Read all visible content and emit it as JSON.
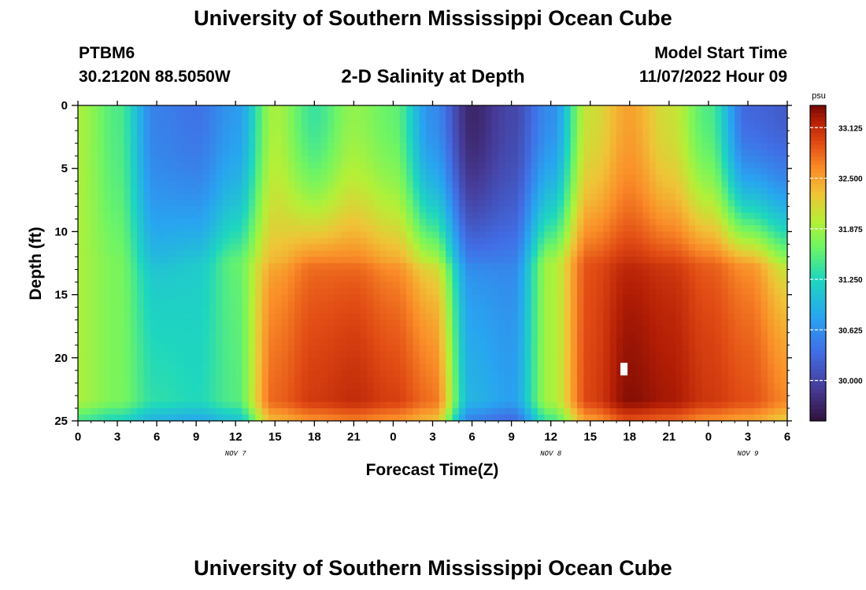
{
  "title": "University of Southern Mississippi Ocean Cube",
  "bottom_title": "University of Southern Mississippi Ocean Cube",
  "station": {
    "id": "PTBM6",
    "coords": "30.2120N  88.5050W"
  },
  "subtitle": "2-D Salinity at Depth",
  "model_start": {
    "label": "Model Start Time",
    "value": "11/07/2022 Hour 09"
  },
  "chart_data": {
    "type": "heatmap",
    "title": "2-D Salinity at Depth",
    "xlabel": "Forecast Time(Z)",
    "ylabel": "Depth (ft)",
    "x_range_hours": [
      0,
      54
    ],
    "y_range_ft": [
      0,
      25
    ],
    "x_ticks": [
      "0",
      "3",
      "6",
      "9",
      "12",
      "15",
      "18",
      "21",
      "0",
      "3",
      "6",
      "9",
      "12",
      "15",
      "18",
      "21",
      "0",
      "3",
      "6"
    ],
    "y_ticks": [
      "0",
      "5",
      "10",
      "15",
      "20",
      "25"
    ],
    "date_labels": [
      {
        "text": "NOV 7",
        "hour": 12
      },
      {
        "text": "NOV 8",
        "hour": 36
      },
      {
        "text": "NOV 9",
        "hour": 51
      }
    ],
    "colorbar": {
      "unit": "psu",
      "min": 29.5,
      "max": 33.4,
      "ticks": [
        "33.125",
        "32.500",
        "31.875",
        "31.250",
        "30.625",
        "30.000"
      ],
      "tick_values": [
        33.125,
        32.5,
        31.875,
        31.25,
        30.625,
        30.0
      ]
    },
    "salinity_profiles": [
      {
        "hour": 0,
        "surface": 31.9,
        "bottom": 31.9,
        "mid": 31.9
      },
      {
        "hour": 3,
        "surface": 31.5,
        "bottom": 31.7,
        "mid": 31.7
      },
      {
        "hour": 6,
        "surface": 30.5,
        "bottom": 31.4,
        "mid": 31.0
      },
      {
        "hour": 9,
        "surface": 30.4,
        "bottom": 31.3,
        "mid": 31.1
      },
      {
        "hour": 12,
        "surface": 30.7,
        "bottom": 31.5,
        "mid": 31.6
      },
      {
        "hour": 15,
        "surface": 31.9,
        "bottom": 32.9,
        "mid": 32.4
      },
      {
        "hour": 18,
        "surface": 31.4,
        "bottom": 33.1,
        "mid": 32.7
      },
      {
        "hour": 21,
        "surface": 31.8,
        "bottom": 33.2,
        "mid": 32.7
      },
      {
        "hour": 24,
        "surface": 31.6,
        "bottom": 33.1,
        "mid": 32.5
      },
      {
        "hour": 27,
        "surface": 30.6,
        "bottom": 32.9,
        "mid": 32.0
      },
      {
        "hour": 30,
        "surface": 29.7,
        "bottom": 31.0,
        "mid": 30.5
      },
      {
        "hour": 33,
        "surface": 30.0,
        "bottom": 30.8,
        "mid": 30.5
      },
      {
        "hour": 36,
        "surface": 30.6,
        "bottom": 31.9,
        "mid": 31.9
      },
      {
        "hour": 39,
        "surface": 32.1,
        "bottom": 33.0,
        "mid": 32.9
      },
      {
        "hour": 42,
        "surface": 32.5,
        "bottom": 33.4,
        "mid": 33.1
      },
      {
        "hour": 45,
        "surface": 32.1,
        "bottom": 33.3,
        "mid": 33.0
      },
      {
        "hour": 48,
        "surface": 31.5,
        "bottom": 33.1,
        "mid": 32.8
      },
      {
        "hour": 51,
        "surface": 30.3,
        "bottom": 33.0,
        "mid": 32.5
      },
      {
        "hour": 54,
        "surface": 30.2,
        "bottom": 32.8,
        "mid": 31.9
      }
    ]
  }
}
